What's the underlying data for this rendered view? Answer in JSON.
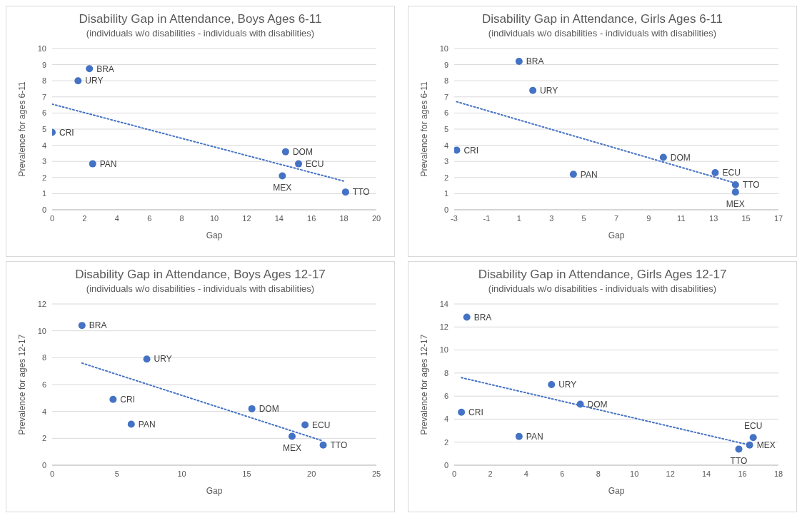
{
  "chart_data": [
    {
      "type": "scatter",
      "title": "Disability Gap in Attendance, Boys Ages 6-11",
      "subtitle": "(individuals w/o disabilities - individuals with disabilities)",
      "xlabel": "Gap",
      "ylabel": "Prevalence for ages 6-11",
      "xlim": [
        0,
        20
      ],
      "xticks": [
        0,
        2,
        4,
        6,
        8,
        10,
        12,
        14,
        16,
        18,
        20
      ],
      "ylim": [
        0,
        10
      ],
      "yticks": [
        0,
        1,
        2,
        3,
        4,
        5,
        6,
        7,
        8,
        9,
        10
      ],
      "grid": "y",
      "legend": false,
      "series": [
        {
          "marker": "circle",
          "color": "#4472c4",
          "x": [
            2.3,
            1.6,
            0,
            2.5,
            14.4,
            15.2,
            14.2,
            18.1
          ],
          "values": [
            8.75,
            8.0,
            4.8,
            2.85,
            3.6,
            2.85,
            2.1,
            1.1
          ]
        },
        {
          "type": "line",
          "marker": "none",
          "color": "#4472c4",
          "line_style": "dotted",
          "x": [
            0,
            18.1
          ],
          "values": [
            6.55,
            1.75
          ]
        }
      ],
      "annotations": [
        {
          "text": "BRA",
          "x": 2.3,
          "y": 8.75
        },
        {
          "text": "URY",
          "x": 1.6,
          "y": 8.0
        },
        {
          "text": "CRI",
          "x": 0,
          "y": 4.8
        },
        {
          "text": "PAN",
          "x": 2.5,
          "y": 2.85
        },
        {
          "text": "DOM",
          "x": 14.4,
          "y": 3.6
        },
        {
          "text": "ECU",
          "x": 15.2,
          "y": 2.85
        },
        {
          "text": "MEX",
          "x": 14.2,
          "y": 2.1
        },
        {
          "text": "TTO",
          "x": 18.1,
          "y": 1.1
        }
      ]
    },
    {
      "type": "scatter",
      "title": "Disability Gap in Attendance, Girls Ages 6-11",
      "subtitle": "(individuals w/o disabilities - individuals with disabilities)",
      "xlabel": "Gap",
      "ylabel": "Prevalence for ages 6-11",
      "xlim": [
        -3,
        17
      ],
      "xticks": [
        -3,
        -1,
        1,
        3,
        5,
        7,
        9,
        11,
        13,
        15,
        17
      ],
      "ylim": [
        0,
        10
      ],
      "yticks": [
        0,
        1,
        2,
        3,
        4,
        5,
        6,
        7,
        8,
        9,
        10
      ],
      "grid": "y",
      "legend": false,
      "series": [
        {
          "marker": "circle",
          "color": "#4472c4",
          "x": [
            1,
            1.85,
            -2.85,
            4.35,
            9.9,
            13.1,
            14.35,
            14.35
          ],
          "values": [
            9.2,
            7.4,
            3.7,
            2.2,
            3.25,
            2.3,
            1.55,
            1.1
          ]
        },
        {
          "type": "line",
          "marker": "none",
          "color": "#4472c4",
          "line_style": "dotted",
          "x": [
            -2.85,
            14.35
          ],
          "values": [
            6.7,
            1.65
          ]
        }
      ],
      "annotations": [
        {
          "text": "BRA",
          "x": 1,
          "y": 9.2
        },
        {
          "text": "URY",
          "x": 1.85,
          "y": 7.4
        },
        {
          "text": "CRI",
          "x": -2.85,
          "y": 3.7
        },
        {
          "text": "PAN",
          "x": 4.35,
          "y": 2.2
        },
        {
          "text": "DOM",
          "x": 9.9,
          "y": 3.25
        },
        {
          "text": "ECU",
          "x": 13.1,
          "y": 2.3
        },
        {
          "text": "TTO",
          "x": 14.35,
          "y": 1.55
        },
        {
          "text": "MEX",
          "x": 14.35,
          "y": 1.1
        }
      ]
    },
    {
      "type": "scatter",
      "title": "Disability Gap in Attendance, Boys Ages 12-17",
      "subtitle": "(individuals w/o disabilities - individuals with disabilities)",
      "xlabel": "Gap",
      "ylabel": "Prevalence for ages 12-17",
      "xlim": [
        0,
        25
      ],
      "xticks": [
        0,
        5,
        10,
        15,
        20,
        25
      ],
      "ylim": [
        0,
        12
      ],
      "yticks": [
        0,
        2,
        4,
        6,
        8,
        10,
        12
      ],
      "grid": "y",
      "legend": false,
      "series": [
        {
          "marker": "circle",
          "color": "#4472c4",
          "x": [
            2.3,
            7.3,
            4.7,
            6.1,
            15.4,
            19.5,
            18.5,
            20.9
          ],
          "values": [
            10.4,
            7.9,
            4.9,
            3.05,
            4.2,
            3.0,
            2.15,
            1.5
          ]
        },
        {
          "type": "line",
          "marker": "none",
          "color": "#4472c4",
          "line_style": "dotted",
          "x": [
            2.3,
            20.9
          ],
          "values": [
            7.6,
            1.8
          ]
        }
      ],
      "annotations": [
        {
          "text": "BRA",
          "x": 2.3,
          "y": 10.4
        },
        {
          "text": "URY",
          "x": 7.3,
          "y": 7.9
        },
        {
          "text": "CRI",
          "x": 4.7,
          "y": 4.9
        },
        {
          "text": "PAN",
          "x": 6.1,
          "y": 3.05
        },
        {
          "text": "DOM",
          "x": 15.4,
          "y": 4.2
        },
        {
          "text": "ECU",
          "x": 19.5,
          "y": 3.0
        },
        {
          "text": "MEX",
          "x": 18.5,
          "y": 2.15
        },
        {
          "text": "TTO",
          "x": 20.9,
          "y": 1.5
        }
      ]
    },
    {
      "type": "scatter",
      "title": "Disability Gap in Attendance, Girls Ages 12-17",
      "subtitle": "(individuals w/o disabilities - individuals with disabilities)",
      "xlabel": "Gap",
      "ylabel": "Prevalence for ages 12-17",
      "xlim": [
        0,
        18
      ],
      "xticks": [
        0,
        2,
        4,
        6,
        8,
        10,
        12,
        14,
        16,
        18
      ],
      "ylim": [
        0,
        14
      ],
      "yticks": [
        0,
        2,
        4,
        6,
        8,
        10,
        12,
        14
      ],
      "grid": "y",
      "legend": false,
      "series": [
        {
          "marker": "circle",
          "color": "#4472c4",
          "x": [
            0.7,
            5.4,
            0.4,
            3.6,
            7.0,
            16.6,
            16.4,
            15.8
          ],
          "values": [
            12.85,
            7.0,
            4.6,
            2.5,
            5.3,
            2.4,
            1.75,
            1.4
          ]
        },
        {
          "type": "line",
          "marker": "none",
          "color": "#4472c4",
          "line_style": "dotted",
          "x": [
            0.4,
            16.4
          ],
          "values": [
            7.6,
            1.75
          ]
        }
      ],
      "annotations": [
        {
          "text": "BRA",
          "x": 0.7,
          "y": 12.85
        },
        {
          "text": "URY",
          "x": 5.4,
          "y": 7.0
        },
        {
          "text": "CRI",
          "x": 0.4,
          "y": 4.6
        },
        {
          "text": "PAN",
          "x": 3.6,
          "y": 2.5
        },
        {
          "text": "DOM",
          "x": 7.0,
          "y": 5.3
        },
        {
          "text": "ECU",
          "x": 16.6,
          "y": 2.4
        },
        {
          "text": "MEX",
          "x": 16.4,
          "y": 1.75
        },
        {
          "text": "TTO",
          "x": 15.8,
          "y": 1.4
        }
      ]
    }
  ]
}
